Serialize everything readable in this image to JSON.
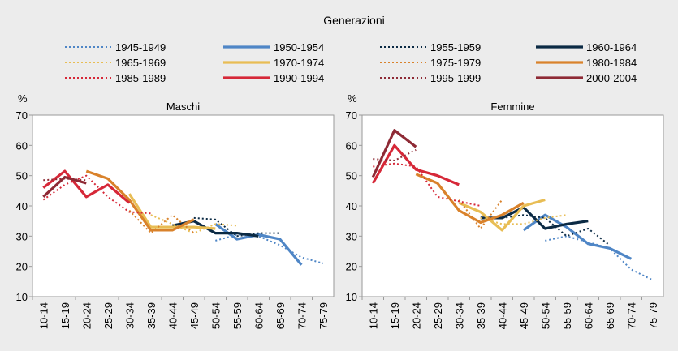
{
  "legend": {
    "title": "Generazioni",
    "entries": [
      {
        "name": "1945-1949",
        "color": "#4f86c6",
        "dash": "dotted",
        "width": "thin"
      },
      {
        "name": "1950-1954",
        "color": "#4f86c6",
        "dash": "solid",
        "width": "thick"
      },
      {
        "name": "1955-1959",
        "color": "#0b2a44",
        "dash": "dotted",
        "width": "thin"
      },
      {
        "name": "1960-1964",
        "color": "#0b2a44",
        "dash": "solid",
        "width": "thick"
      },
      {
        "name": "1965-1969",
        "color": "#e8bd54",
        "dash": "dotted",
        "width": "thin"
      },
      {
        "name": "1970-1974",
        "color": "#e8bd54",
        "dash": "solid",
        "width": "thick"
      },
      {
        "name": "1975-1979",
        "color": "#d9822b",
        "dash": "dotted",
        "width": "thin"
      },
      {
        "name": "1980-1984",
        "color": "#d9822b",
        "dash": "solid",
        "width": "thick"
      },
      {
        "name": "1985-1989",
        "color": "#d62838",
        "dash": "dotted",
        "width": "thin"
      },
      {
        "name": "1990-1994",
        "color": "#d62838",
        "dash": "solid",
        "width": "thick"
      },
      {
        "name": "1995-1999",
        "color": "#8e2a35",
        "dash": "dotted",
        "width": "thin"
      },
      {
        "name": "2000-2004",
        "color": "#8e2a35",
        "dash": "solid",
        "width": "thick"
      }
    ]
  },
  "chart_data": [
    {
      "type": "line",
      "title": "Maschi",
      "ylabel": "%",
      "ylim": [
        10,
        70
      ],
      "yticks": [
        10,
        20,
        30,
        40,
        50,
        60,
        70
      ],
      "categories": [
        "10-14",
        "15-19",
        "20-24",
        "25-29",
        "30-34",
        "35-39",
        "40-44",
        "45-49",
        "50-54",
        "55-59",
        "60-64",
        "65-69",
        "70-74",
        "75-79"
      ],
      "series": [
        {
          "name": "1945-1949",
          "values": [
            null,
            null,
            null,
            null,
            null,
            null,
            null,
            null,
            28.5,
            30.5,
            30,
            27,
            23,
            21
          ]
        },
        {
          "name": "1950-1954",
          "values": [
            null,
            null,
            null,
            null,
            null,
            null,
            null,
            null,
            34,
            29,
            30.5,
            29,
            20.5,
            null
          ]
        },
        {
          "name": "1955-1959",
          "values": [
            null,
            null,
            null,
            null,
            null,
            null,
            null,
            36,
            35.5,
            30,
            31,
            31,
            null,
            null
          ]
        },
        {
          "name": "1960-1964",
          "values": [
            null,
            null,
            null,
            null,
            null,
            null,
            33.5,
            35,
            31,
            31,
            30,
            null,
            null,
            null
          ]
        },
        {
          "name": "1965-1969",
          "values": [
            null,
            null,
            null,
            null,
            null,
            37,
            34,
            31,
            34,
            33.5,
            null,
            null,
            null,
            null
          ]
        },
        {
          "name": "1970-1974",
          "values": [
            null,
            null,
            null,
            null,
            44,
            33,
            33,
            33,
            32.5,
            null,
            null,
            null,
            null,
            null
          ]
        },
        {
          "name": "1975-1979",
          "values": [
            null,
            null,
            null,
            null,
            38.5,
            31,
            37,
            31,
            null,
            null,
            null,
            null,
            null,
            null
          ]
        },
        {
          "name": "1980-1984",
          "values": [
            null,
            null,
            51.5,
            49,
            42,
            32,
            32,
            35.5,
            null,
            null,
            null,
            null,
            null,
            null
          ]
        },
        {
          "name": "1985-1989",
          "values": [
            42,
            47,
            50,
            43,
            38,
            37.5,
            null,
            null,
            null,
            null,
            null,
            null,
            null,
            null
          ]
        },
        {
          "name": "1990-1994",
          "values": [
            46,
            51.5,
            43,
            47,
            41,
            null,
            null,
            null,
            null,
            null,
            null,
            null,
            null,
            null
          ]
        },
        {
          "name": "1995-1999",
          "values": [
            48.5,
            49,
            48.5,
            null,
            null,
            null,
            null,
            null,
            null,
            null,
            null,
            null,
            null,
            null
          ]
        },
        {
          "name": "2000-2004",
          "values": [
            43,
            49.5,
            47.5,
            null,
            null,
            null,
            null,
            null,
            null,
            null,
            null,
            null,
            null,
            null
          ]
        }
      ]
    },
    {
      "type": "line",
      "title": "Femmine",
      "ylabel": "%",
      "ylim": [
        10,
        70
      ],
      "yticks": [
        10,
        20,
        30,
        40,
        50,
        60,
        70
      ],
      "categories": [
        "10-14",
        "15-19",
        "20-24",
        "25-29",
        "30-34",
        "35-39",
        "40-44",
        "45-49",
        "50-54",
        "55-59",
        "60-64",
        "65-69",
        "70-74",
        "75-79"
      ],
      "series": [
        {
          "name": "1945-1949",
          "values": [
            null,
            null,
            null,
            null,
            null,
            null,
            null,
            null,
            28.5,
            30,
            28,
            26,
            19,
            15.5
          ]
        },
        {
          "name": "1950-1954",
          "values": [
            null,
            null,
            null,
            null,
            null,
            null,
            null,
            32,
            37,
            33,
            27.5,
            26,
            22.5,
            null
          ]
        },
        {
          "name": "1955-1959",
          "values": [
            null,
            null,
            null,
            null,
            null,
            null,
            36,
            37,
            36,
            30,
            32.5,
            27,
            null,
            null
          ]
        },
        {
          "name": "1960-1964",
          "values": [
            null,
            null,
            null,
            null,
            null,
            36,
            36,
            39.5,
            32.5,
            34,
            35,
            null,
            null,
            null
          ]
        },
        {
          "name": "1965-1969",
          "values": [
            null,
            null,
            null,
            null,
            null,
            36,
            34,
            34,
            36,
            37,
            null,
            null,
            null,
            null
          ]
        },
        {
          "name": "1970-1974",
          "values": [
            null,
            null,
            null,
            null,
            41,
            38,
            32,
            40,
            42,
            null,
            null,
            null,
            null,
            null
          ]
        },
        {
          "name": "1975-1979",
          "values": [
            null,
            null,
            null,
            null,
            42,
            32.5,
            42,
            null,
            null,
            null,
            null,
            null,
            null,
            null
          ]
        },
        {
          "name": "1980-1984",
          "values": [
            null,
            null,
            50.5,
            47.5,
            38.5,
            34.5,
            37,
            41,
            null,
            null,
            null,
            null,
            null,
            null
          ]
        },
        {
          "name": "1985-1989",
          "values": [
            53,
            54,
            53,
            43,
            41.5,
            40,
            null,
            null,
            null,
            null,
            null,
            null,
            null,
            null
          ]
        },
        {
          "name": "1990-1994",
          "values": [
            47.5,
            60,
            52,
            50,
            47,
            null,
            null,
            null,
            null,
            null,
            null,
            null,
            null,
            null
          ]
        },
        {
          "name": "1995-1999",
          "values": [
            55.5,
            55,
            58.5,
            null,
            null,
            null,
            null,
            null,
            null,
            null,
            null,
            null,
            null,
            null
          ]
        },
        {
          "name": "2000-2004",
          "values": [
            49.5,
            65,
            59.5,
            null,
            null,
            null,
            null,
            null,
            null,
            null,
            null,
            null,
            null,
            null
          ]
        }
      ]
    }
  ]
}
